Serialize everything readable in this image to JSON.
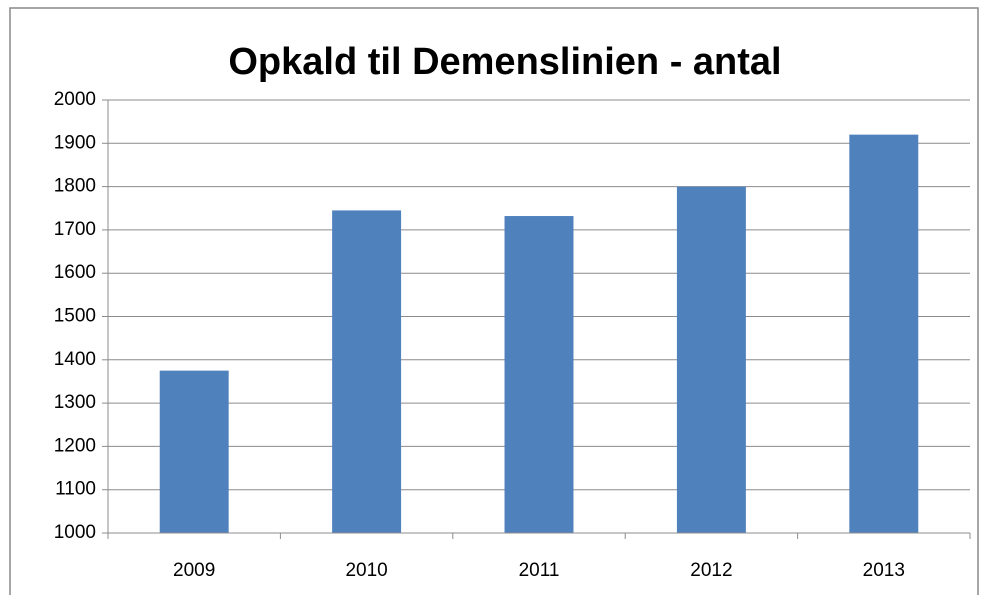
{
  "chart_data": {
    "type": "bar",
    "title": "Opkald til Demenslinien - antal",
    "categories": [
      "2009",
      "2010",
      "2011",
      "2012",
      "2013"
    ],
    "values": [
      1375,
      1745,
      1732,
      1800,
      1920
    ],
    "color": "#4f81bd",
    "ylim": [
      1000,
      2000
    ],
    "yticks": [
      1000,
      1100,
      1200,
      1300,
      1400,
      1500,
      1600,
      1700,
      1800,
      1900,
      2000
    ],
    "grid": true
  }
}
